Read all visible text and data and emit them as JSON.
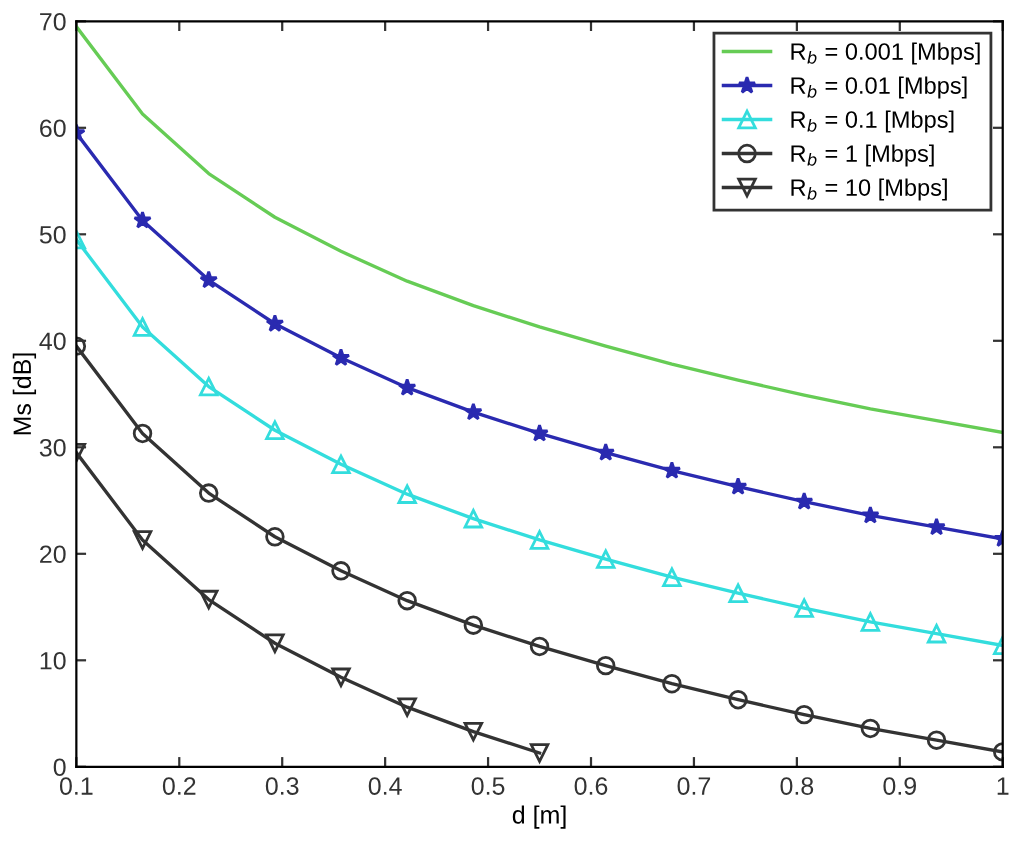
{
  "chart_data": {
    "type": "line",
    "xlabel": "d [m]",
    "ylabel": "Ms [dB]",
    "x": [
      0.1,
      0.1643,
      0.2286,
      0.2929,
      0.3571,
      0.4214,
      0.4857,
      0.55,
      0.6143,
      0.6786,
      0.7429,
      0.8071,
      0.8714,
      0.9357,
      1.0
    ],
    "xlim": [
      0.1,
      1
    ],
    "ylim": [
      0,
      70
    ],
    "xticks": [
      0.1,
      0.2,
      0.3,
      0.4,
      0.5,
      0.6,
      0.7,
      0.8,
      0.9,
      1
    ],
    "yticks": [
      0,
      10,
      20,
      30,
      40,
      50,
      60,
      70
    ],
    "grid": false,
    "legend": "top right",
    "line_style": "solid",
    "series": [
      {
        "name": "R$_{b}$ = 0.001 [Mbps]",
        "color": "#66cc55",
        "marker": "none",
        "values": [
          69.5,
          61.3,
          55.7,
          51.6,
          48.4,
          45.6,
          43.3,
          41.3,
          39.5,
          37.8,
          36.3,
          34.9,
          33.6,
          32.5,
          31.4
        ]
      },
      {
        "name": "R$_{b}$ = 0.01 [Mbps]",
        "color": "#2a2ab0",
        "marker": "star",
        "values": [
          59.5,
          51.3,
          45.7,
          41.6,
          38.4,
          35.6,
          33.3,
          31.3,
          29.5,
          27.8,
          26.3,
          24.9,
          23.6,
          22.5,
          21.4
        ]
      },
      {
        "name": "R$_{b}$ = 0.1 [Mbps]",
        "color": "#33dddd",
        "marker": "triangle",
        "values": [
          49.5,
          41.3,
          35.7,
          31.6,
          28.4,
          25.6,
          23.3,
          21.3,
          19.5,
          17.8,
          16.3,
          14.9,
          13.6,
          12.5,
          11.4
        ]
      },
      {
        "name": "R$_{b}$ = 1 [Mbps]",
        "color": "#333333",
        "marker": "circle",
        "values": [
          39.5,
          31.3,
          25.7,
          21.6,
          18.4,
          15.6,
          13.3,
          11.3,
          9.5,
          7.8,
          6.3,
          4.9,
          3.6,
          2.5,
          1.4
        ]
      },
      {
        "name": "R$_{b}$ = 10 [Mbps]",
        "color": "#333333",
        "marker": "triangle_down",
        "values": [
          29.5,
          21.3,
          15.7,
          11.6,
          8.4,
          5.6,
          3.3,
          1.3,
          null,
          null,
          null,
          null,
          null,
          null,
          null
        ]
      }
    ]
  }
}
